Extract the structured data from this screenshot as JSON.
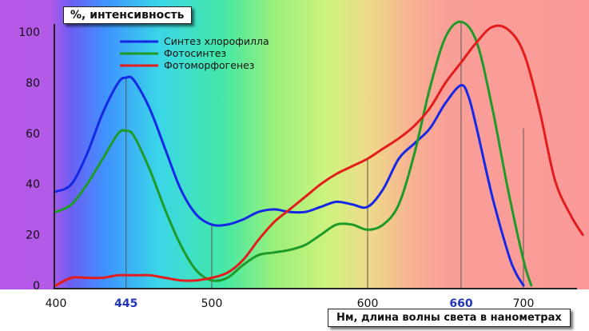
{
  "chart_data": {
    "type": "line",
    "ylabel": "%, интенсивность",
    "xlabel": "Нм, длина волны света в нанометрах",
    "xlim": [
      400,
      735
    ],
    "ylim": [
      0,
      108
    ],
    "x_ticks": [
      "400",
      "445",
      "500",
      "600",
      "660",
      "700"
    ],
    "x_ticks_highlighted": [
      "445",
      "660"
    ],
    "y_ticks": [
      "0",
      "20",
      "40",
      "60",
      "80",
      "100"
    ],
    "vertical_markers": [
      445,
      500,
      600,
      660,
      700
    ],
    "legend_placement": "top-left",
    "series": [
      {
        "name": "Синтез хлорофилла",
        "color": "#1428e6",
        "points": [
          [
            400,
            37
          ],
          [
            410,
            40
          ],
          [
            420,
            52
          ],
          [
            430,
            68
          ],
          [
            440,
            80
          ],
          [
            445,
            82
          ],
          [
            450,
            81
          ],
          [
            460,
            70
          ],
          [
            470,
            54
          ],
          [
            480,
            38
          ],
          [
            490,
            28
          ],
          [
            500,
            24
          ],
          [
            510,
            24
          ],
          [
            520,
            26
          ],
          [
            530,
            29
          ],
          [
            540,
            30
          ],
          [
            550,
            29
          ],
          [
            560,
            29
          ],
          [
            570,
            31
          ],
          [
            580,
            33
          ],
          [
            590,
            32
          ],
          [
            600,
            31
          ],
          [
            610,
            38
          ],
          [
            620,
            50
          ],
          [
            630,
            56
          ],
          [
            640,
            62
          ],
          [
            650,
            72
          ],
          [
            660,
            79
          ],
          [
            665,
            74
          ],
          [
            670,
            62
          ],
          [
            680,
            35
          ],
          [
            690,
            13
          ],
          [
            695,
            5
          ],
          [
            700,
            0
          ]
        ]
      },
      {
        "name": "Фотосинтез",
        "color": "#1e9a28",
        "points": [
          [
            400,
            29
          ],
          [
            410,
            32
          ],
          [
            420,
            40
          ],
          [
            430,
            50
          ],
          [
            440,
            60
          ],
          [
            445,
            61
          ],
          [
            450,
            59
          ],
          [
            460,
            46
          ],
          [
            470,
            30
          ],
          [
            480,
            16
          ],
          [
            490,
            6
          ],
          [
            500,
            2
          ],
          [
            510,
            3
          ],
          [
            520,
            8
          ],
          [
            530,
            12
          ],
          [
            540,
            13
          ],
          [
            550,
            14
          ],
          [
            560,
            16
          ],
          [
            570,
            20
          ],
          [
            580,
            24
          ],
          [
            590,
            24
          ],
          [
            600,
            22
          ],
          [
            610,
            24
          ],
          [
            620,
            32
          ],
          [
            630,
            52
          ],
          [
            640,
            78
          ],
          [
            650,
            98
          ],
          [
            660,
            104
          ],
          [
            670,
            96
          ],
          [
            680,
            70
          ],
          [
            690,
            38
          ],
          [
            700,
            10
          ],
          [
            705,
            0
          ]
        ]
      },
      {
        "name": "Фотоморфогенез",
        "color": "#e31c1c",
        "points": [
          [
            400,
            0
          ],
          [
            410,
            3
          ],
          [
            420,
            3
          ],
          [
            430,
            3
          ],
          [
            440,
            4
          ],
          [
            450,
            4
          ],
          [
            460,
            4
          ],
          [
            470,
            3
          ],
          [
            480,
            2
          ],
          [
            490,
            2
          ],
          [
            500,
            3
          ],
          [
            510,
            5
          ],
          [
            520,
            10
          ],
          [
            530,
            18
          ],
          [
            540,
            25
          ],
          [
            550,
            30
          ],
          [
            560,
            35
          ],
          [
            570,
            40
          ],
          [
            580,
            44
          ],
          [
            590,
            47
          ],
          [
            600,
            50
          ],
          [
            610,
            54
          ],
          [
            620,
            58
          ],
          [
            630,
            63
          ],
          [
            640,
            70
          ],
          [
            650,
            80
          ],
          [
            660,
            88
          ],
          [
            670,
            96
          ],
          [
            680,
            102
          ],
          [
            690,
            101
          ],
          [
            700,
            92
          ],
          [
            710,
            70
          ],
          [
            720,
            42
          ],
          [
            730,
            28
          ],
          [
            738,
            20
          ]
        ]
      }
    ]
  }
}
